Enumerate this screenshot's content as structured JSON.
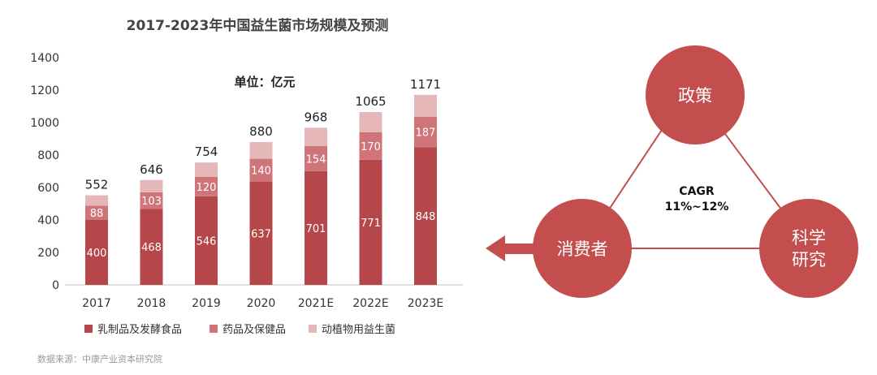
{
  "chart_data": {
    "type": "bar",
    "stacked": true,
    "title": "2017-2023年中国益生菌市场规模及预测",
    "unit_note": "单位：亿元",
    "categories": [
      "2017",
      "2018",
      "2019",
      "2020",
      "2021E",
      "2022E",
      "2023E"
    ],
    "series": [
      {
        "name": "乳制品及发酵食品",
        "values": [
          400,
          468,
          546,
          637,
          701,
          771,
          848
        ],
        "color": "#b5474a"
      },
      {
        "name": "药品及保健品",
        "values": [
          88,
          103,
          120,
          140,
          154,
          170,
          187
        ],
        "color": "#cf7478"
      },
      {
        "name": "动植物用益生菌",
        "values": [
          64,
          75,
          88,
          103,
          113,
          124,
          136
        ],
        "color": "#e5b7b8"
      }
    ],
    "totals": [
      552,
      646,
      754,
      880,
      968,
      1065,
      1171
    ],
    "ylim": [
      0,
      1400
    ],
    "yticks": [
      0,
      200,
      400,
      600,
      800,
      1000,
      1200,
      1400
    ],
    "grid": false,
    "legend_position": "bottom"
  },
  "diagram": {
    "nodes": {
      "top": "政策",
      "left": "消费者",
      "right_line1": "科学",
      "right_line2": "研究"
    },
    "center_line1": "CAGR",
    "center_line2": "11%~12%",
    "node_color": "#c44d4e",
    "arrow_color": "#c44d4e"
  },
  "source": "数据来源：中康产业资本研究院"
}
